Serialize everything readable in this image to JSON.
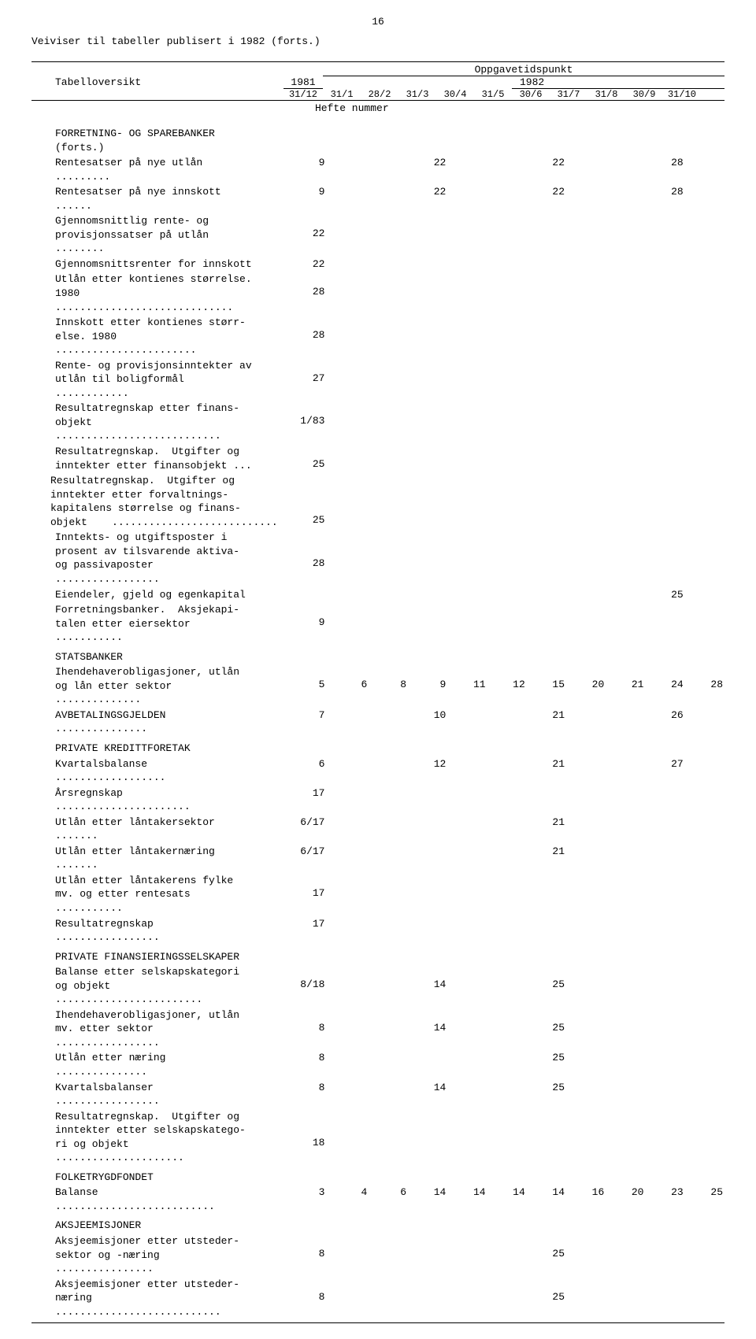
{
  "page_number": "16",
  "title": "Veiviser til tabeller publisert i 1982 (forts.)",
  "header": {
    "tabelloversikt": "Tabelloversikt",
    "oppgavetidspunkt": "Oppgavetidspunkt",
    "y1981": "1981",
    "y1982": "1982",
    "c1981": "31/12",
    "cols": [
      "31/1",
      "28/2",
      "31/3",
      "30/4",
      "31/5",
      "30/6",
      "31/7",
      "31/8",
      "30/9",
      "31/10"
    ],
    "hefte": "Hefte nummer"
  },
  "rows": [
    {
      "label": "FORRETNING- OG SPAREBANKER\n(forts.)",
      "section": true
    },
    {
      "label": "Rentesatser på nye utlån   ",
      "dots": true,
      "c1981": "9",
      "v": [
        "",
        "",
        "22",
        "",
        "",
        "22",
        "",
        "",
        "28",
        ""
      ]
    },
    {
      "label": "Rentesatser på nye innskott   ",
      "dots": true,
      "c1981": "9",
      "v": [
        "",
        "",
        "22",
        "",
        "",
        "22",
        "",
        "",
        "28",
        ""
      ]
    },
    {
      "label": "Gjennomsnittlig rente- og\nprovisjonssatser på utlån   ",
      "dots": true,
      "c1981": "22"
    },
    {
      "label": "Gjennomsnittsrenter for innskott",
      "c1981": "22"
    },
    {
      "label": "Utlån etter kontienes størrelse.\n1980   ",
      "dots": true,
      "c1981": "28"
    },
    {
      "label": "Innskott etter kontienes størr-\nelse. 1980   ",
      "dots": true,
      "c1981": "28"
    },
    {
      "label": "Rente- og provisjonsinntekter av\nutlån til boligformål   ",
      "dots": true,
      "c1981": "27"
    },
    {
      "label": "Resultatregnskap etter finans-\nobjekt   ",
      "dots": true,
      "c1981": "1/83"
    },
    {
      "label": "Resultatregnskap.  Utgifter og\ninntekter etter finansobjekt ...",
      "c1981": "25"
    },
    {
      "label": "Resultatregnskap.  Utgifter og\ninntekter etter forvaltnings-\nkapitalens størrelse og finans-\nobjekt   ",
      "dots": true,
      "c1981": "25",
      "indent_neg": true
    },
    {
      "label": "Inntekts- og utgiftsposter i\nprosent av tilsvarende aktiva-\nog passivaposter   ",
      "dots": true,
      "c1981": "28"
    },
    {
      "label": "Eiendeler, gjeld og egenkapital",
      "v": [
        "",
        "",
        "",
        "",
        "",
        "",
        "",
        "",
        "25",
        ""
      ]
    },
    {
      "label": "Forretningsbanker.  Aksjekapi-\ntalen etter eiersektor   ",
      "dots": true,
      "c1981": "9"
    },
    {
      "label": "STATSBANKER",
      "section": true
    },
    {
      "label": "Ihendehaverobligasjoner, utlån\nog lån etter sektor   ",
      "dots": true,
      "c1981": "5",
      "v": [
        "6",
        "8",
        "9",
        "11",
        "12",
        "15",
        "20",
        "21",
        "24",
        "28"
      ]
    },
    {
      "label": "AVBETALINGSGJELDEN   ",
      "dots": true,
      "c1981": "7",
      "v": [
        "",
        "",
        "10",
        "",
        "",
        "21",
        "",
        "",
        "26",
        ""
      ]
    },
    {
      "label": "PRIVATE KREDITTFORETAK",
      "section": true
    },
    {
      "label": "Kvartalsbalanse   ",
      "dots": true,
      "c1981": "6",
      "v": [
        "",
        "",
        "12",
        "",
        "",
        "21",
        "",
        "",
        "27",
        ""
      ]
    },
    {
      "label": "Årsregnskap   ",
      "dots": true,
      "c1981": "17"
    },
    {
      "label": "Utlån etter låntakersektor   ",
      "dots": true,
      "c1981": "6/17",
      "v": [
        "",
        "",
        "",
        "",
        "",
        "21",
        "",
        "",
        "",
        ""
      ]
    },
    {
      "label": "Utlån etter låntakernæring   ",
      "dots": true,
      "c1981": "6/17",
      "v": [
        "",
        "",
        "",
        "",
        "",
        "21",
        "",
        "",
        "",
        ""
      ]
    },
    {
      "label": "Utlån etter låntakerens fylke\nmv. og etter rentesats   ",
      "dots": true,
      "c1981": "17"
    },
    {
      "label": "Resultatregnskap   ",
      "dots": true,
      "c1981": "17"
    },
    {
      "label": "PRIVATE FINANSIERINGSSELSKAPER",
      "section": true
    },
    {
      "label": "Balanse etter selskapskategori\nog objekt   ",
      "dots": true,
      "c1981": "8/18",
      "v": [
        "",
        "",
        "14",
        "",
        "",
        "25",
        "",
        "",
        "",
        ""
      ]
    },
    {
      "label": "Ihendehaverobligasjoner, utlån\nmv. etter sektor   ",
      "dots": true,
      "c1981": "8",
      "v": [
        "",
        "",
        "14",
        "",
        "",
        "25",
        "",
        "",
        "",
        ""
      ]
    },
    {
      "label": "Utlån etter næring   ",
      "dots": true,
      "c1981": "8",
      "v": [
        "",
        "",
        "",
        "",
        "",
        "25",
        "",
        "",
        "",
        ""
      ]
    },
    {
      "label": "Kvartalsbalanser   ",
      "dots": true,
      "c1981": "8",
      "v": [
        "",
        "",
        "14",
        "",
        "",
        "25",
        "",
        "",
        "",
        ""
      ]
    },
    {
      "label": "Resultatregnskap.  Utgifter og\ninntekter etter selskapskatego-\nri og objekt   ",
      "dots": true,
      "c1981": "18"
    },
    {
      "label": "FOLKETRYGDFONDET",
      "section": true
    },
    {
      "label": "Balanse   ",
      "dots": true,
      "c1981": "3",
      "v": [
        "4",
        "6",
        "14",
        "14",
        "14",
        "14",
        "16",
        "20",
        "23",
        "25"
      ]
    },
    {
      "label": "AKSJEEMISJONER",
      "section": true
    },
    {
      "label": "Aksjeemisjoner etter utsteder-\nsektor og -næring   ",
      "dots": true,
      "c1981": "8",
      "v": [
        "",
        "",
        "",
        "",
        "",
        "25",
        "",
        "",
        "",
        ""
      ]
    },
    {
      "label": "Aksjeemisjoner etter utsteder-\nnæring   ",
      "dots": true,
      "c1981": "8",
      "v": [
        "",
        "",
        "",
        "",
        "",
        "25",
        "",
        "",
        "",
        ""
      ]
    }
  ]
}
